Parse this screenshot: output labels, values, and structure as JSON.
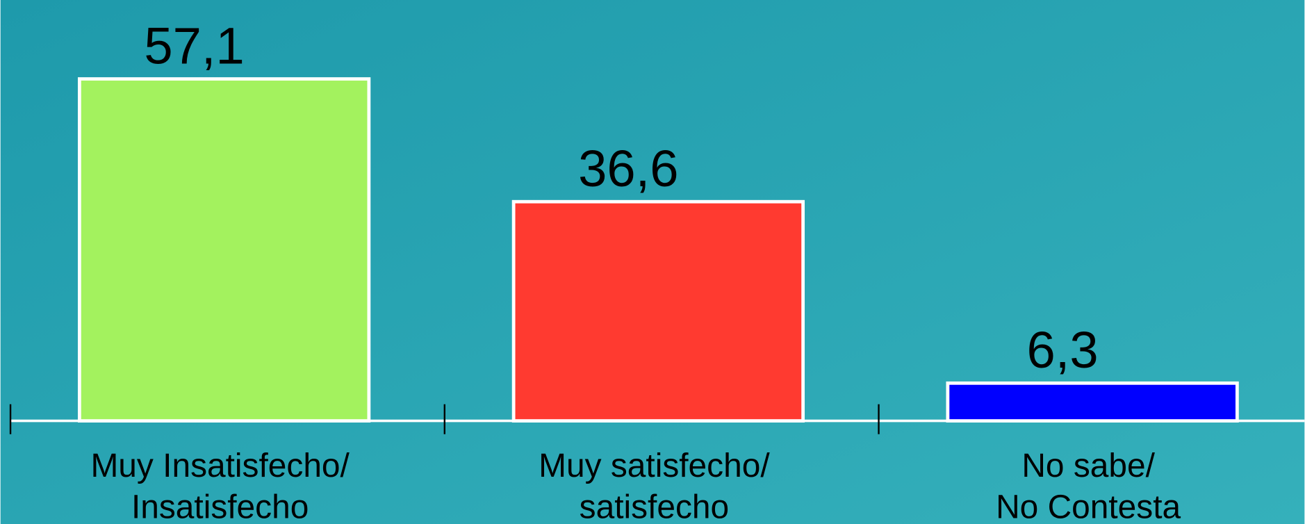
{
  "chart_data": {
    "type": "bar",
    "categories": [
      [
        "Muy Insatisfecho/",
        "Insatisfecho"
      ],
      [
        "Muy satisfecho/",
        "satisfecho"
      ],
      [
        "No sabe/",
        "No Contesta"
      ]
    ],
    "values": [
      57.1,
      36.6,
      6.3
    ],
    "value_labels": [
      "57,1",
      "36,6",
      "6,3"
    ],
    "colors": [
      "#a3f25e",
      "#ff3a30",
      "#0000ff"
    ]
  }
}
